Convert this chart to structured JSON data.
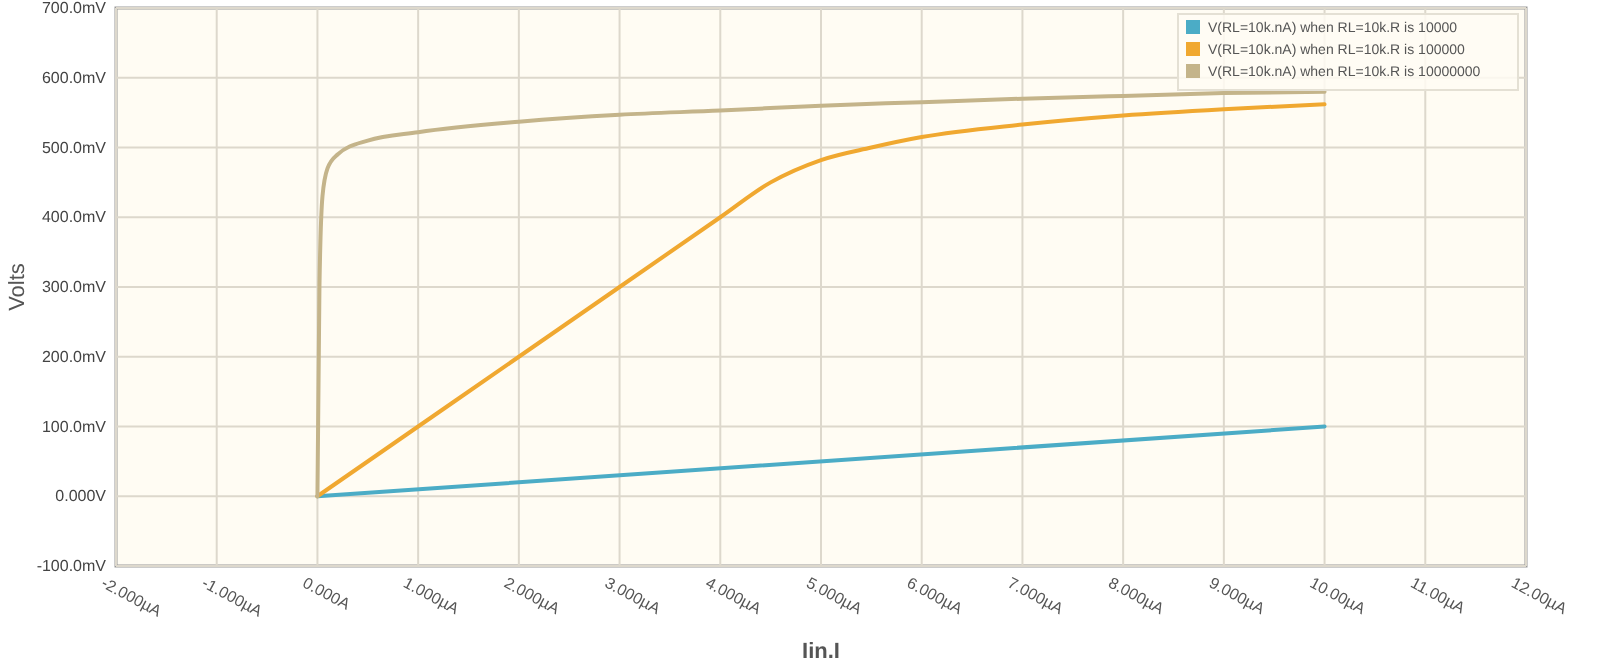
{
  "chart_data": {
    "type": "line",
    "xlabel": "Iin.I",
    "ylabel": "Volts",
    "xlim": [
      -2,
      12
    ],
    "xticks": [
      {
        "value": -2,
        "label": "-2.000µA"
      },
      {
        "value": -1,
        "label": "-1.000µA"
      },
      {
        "value": 0,
        "label": "0.000A"
      },
      {
        "value": 1,
        "label": "1.000µA"
      },
      {
        "value": 2,
        "label": "2.000µA"
      },
      {
        "value": 3,
        "label": "3.000µA"
      },
      {
        "value": 4,
        "label": "4.000µA"
      },
      {
        "value": 5,
        "label": "5.000µA"
      },
      {
        "value": 6,
        "label": "6.000µA"
      },
      {
        "value": 7,
        "label": "7.000µA"
      },
      {
        "value": 8,
        "label": "8.000µA"
      },
      {
        "value": 9,
        "label": "9.000µA"
      },
      {
        "value": 10,
        "label": "10.00µA"
      },
      {
        "value": 11,
        "label": "11.00µA"
      },
      {
        "value": 12,
        "label": "12.00µA"
      }
    ],
    "ylim": [
      -100,
      700
    ],
    "yticks": [
      {
        "value": -100,
        "label": "-100.0mV"
      },
      {
        "value": 0,
        "label": "0.000V"
      },
      {
        "value": 100,
        "label": "100.0mV"
      },
      {
        "value": 200,
        "label": "200.0mV"
      },
      {
        "value": 300,
        "label": "300.0mV"
      },
      {
        "value": 400,
        "label": "400.0mV"
      },
      {
        "value": 500,
        "label": "500.0mV"
      },
      {
        "value": 600,
        "label": "600.0mV"
      },
      {
        "value": 700,
        "label": "700.0mV"
      }
    ],
    "grid": true,
    "legend": "top right",
    "marker": "none",
    "line_style": "solid",
    "series": [
      {
        "name": "V(RL=10k.nA) when RL=10k.R is 10000",
        "color": "#4bacc6",
        "x": [
          0,
          10
        ],
        "values": [
          0,
          100
        ]
      },
      {
        "name": "V(RL=10k.nA) when RL=10k.R is 100000",
        "color": "#f0a830",
        "x": [
          0,
          1,
          2,
          3,
          4,
          4.5,
          5,
          5.5,
          6,
          7,
          8,
          9,
          10
        ],
        "values": [
          0,
          100,
          200,
          300,
          400,
          450,
          482,
          500,
          515,
          533,
          546,
          555,
          562
        ]
      },
      {
        "name": "V(RL=10k.nA) when RL=10k.R is 10000000",
        "color": "#c4b48a",
        "x": [
          0,
          0.02,
          0.05,
          0.1,
          0.2,
          0.5,
          1,
          2,
          3,
          4,
          5,
          6,
          7,
          8,
          9,
          10
        ],
        "values": [
          0,
          300,
          430,
          470,
          490,
          510,
          522,
          537,
          547,
          553,
          560,
          565,
          570,
          574,
          578,
          580
        ]
      }
    ]
  }
}
